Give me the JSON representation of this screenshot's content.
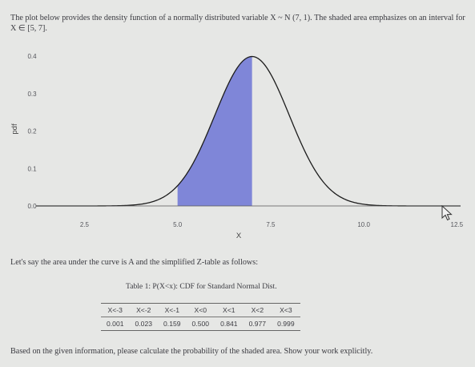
{
  "intro_text": "The plot below provides the density function of a normally distributed variable X ~ N (7, 1). The shaded area emphasizes on an interval for X ∈ [5, 7].",
  "chart_data": {
    "type": "area",
    "distribution": "normal",
    "mean": 7,
    "sd": 1,
    "shaded_interval": [
      5,
      7
    ],
    "xlabel": "X",
    "ylabel": "pdf",
    "xlim": [
      1.2,
      12.6
    ],
    "ylim": [
      0,
      0.4
    ],
    "x_ticks": [
      "2.5",
      "5.0",
      "7.5",
      "10.0",
      "12.5"
    ],
    "y_ticks": [
      "0.0",
      "0.1",
      "0.2",
      "0.3",
      "0.4"
    ],
    "colors": {
      "curve": "#1c1c1c",
      "shade": "#7f86d8"
    }
  },
  "mid_text": "Let's say the area under the curve is A and the simplified Z-table as follows:",
  "table": {
    "caption": "Table 1: P(X<x): CDF for Standard Normal Dist.",
    "headers": [
      "X<-3",
      "X<-2",
      "X<-1",
      "X<0",
      "X<1",
      "X<2",
      "X<3"
    ],
    "values": [
      "0.001",
      "0.023",
      "0.159",
      "0.500",
      "0.841",
      "0.977",
      "0.999"
    ]
  },
  "outro_text": "Based on the given information, please calculate the probability of the shaded area. Show your work explicitly.",
  "icons": {
    "cursor": "mouse-pointer-icon"
  }
}
